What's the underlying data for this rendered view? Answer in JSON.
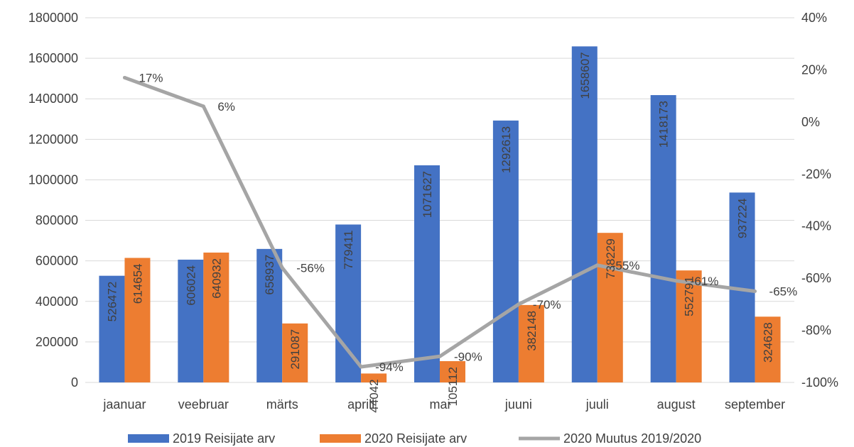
{
  "chart_data": {
    "type": "bar",
    "categories": [
      "jaanuar",
      "veebruar",
      "märts",
      "aprill",
      "mai",
      "juuni",
      "juuli",
      "august",
      "september"
    ],
    "series": [
      {
        "name": "2019 Reisijate arv",
        "kind": "bar",
        "axis": "left",
        "color": "#4472C4",
        "values": [
          526472,
          606024,
          658937,
          779411,
          1071627,
          1292613,
          1658607,
          1418173,
          937224
        ],
        "labels": [
          "526472",
          "606024",
          "658937",
          "779411",
          "1071627",
          "1292613",
          "1658607",
          "1418173",
          "937224"
        ]
      },
      {
        "name": "2020 Reisijate arv",
        "kind": "bar",
        "axis": "left",
        "color": "#ED7D31",
        "values": [
          614654,
          640932,
          291087,
          44042,
          105112,
          382148,
          738229,
          552791,
          324628
        ],
        "labels": [
          "614654",
          "640932",
          "291087",
          "44042",
          "105112",
          "382148",
          "738229",
          "552791",
          "324628"
        ]
      },
      {
        "name": "2020 Muutus 2019/2020",
        "kind": "line",
        "axis": "right",
        "color": "#A5A5A5",
        "values": [
          17,
          6,
          -56,
          -94,
          -90,
          -70,
          -55,
          -61,
          -65
        ],
        "labels": [
          "17%",
          "6%",
          "-56%",
          "-94%",
          "-90%",
          "-70%",
          "-55%",
          "-61%",
          "-65%"
        ]
      }
    ],
    "y_left": {
      "min": 0,
      "max": 1800000,
      "ticks": [
        "0",
        "200000",
        "400000",
        "600000",
        "800000",
        "1000000",
        "1200000",
        "1400000",
        "1600000",
        "1800000"
      ]
    },
    "y_right": {
      "min": -100,
      "max": 40,
      "ticks": [
        "-100%",
        "-80%",
        "-60%",
        "-40%",
        "-20%",
        "0%",
        "20%",
        "40%"
      ]
    },
    "grid": true,
    "legend": "bottom"
  }
}
